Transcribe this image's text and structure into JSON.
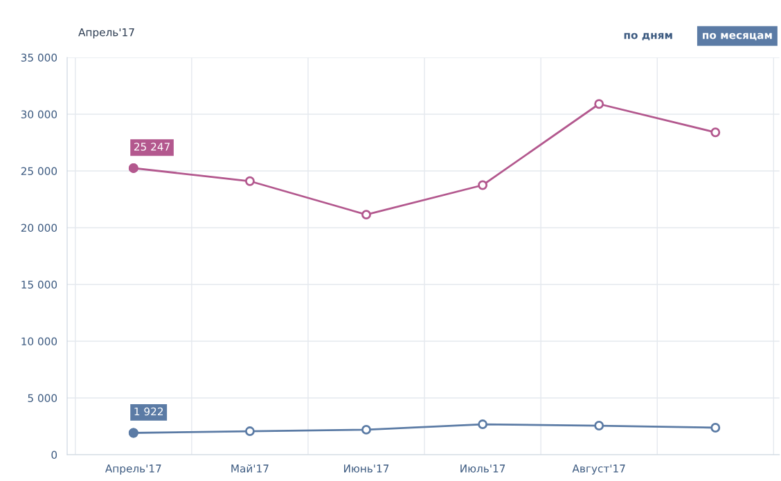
{
  "chart_data": {
    "type": "line",
    "categories": [
      "Апрель'17",
      "Май'17",
      "Июнь'17",
      "Июль'17",
      "Август'17",
      null
    ],
    "series": [
      {
        "color": "#b3588e",
        "values": [
          25247,
          24100,
          21150,
          23750,
          30900,
          28400
        ],
        "value_labels": [
          "25 247",
          null,
          null,
          null,
          null,
          null
        ]
      },
      {
        "color": "#5b7ba5",
        "values": [
          1922,
          2070,
          2200,
          2680,
          2560,
          2380
        ],
        "value_labels": [
          "1 922",
          null,
          null,
          null,
          null,
          null
        ]
      }
    ],
    "ylim": [
      0,
      35000
    ],
    "yticks": [
      0,
      {
        "value": 5000,
        "label": "5 000"
      },
      {
        "value": 10000,
        "label": "10 000"
      },
      {
        "value": 15000,
        "label": "15 000"
      },
      {
        "value": 20000,
        "label": "20 000"
      },
      {
        "value": 25000,
        "label": "25 000"
      },
      {
        "value": 30000,
        "label": "30 000"
      },
      {
        "value": 35000,
        "label": "35 000"
      }
    ],
    "grid": true,
    "legend": false,
    "marker": "circle",
    "annotations": [
      "Апрель'17",
      "по дням",
      "по месяцам"
    ]
  }
}
